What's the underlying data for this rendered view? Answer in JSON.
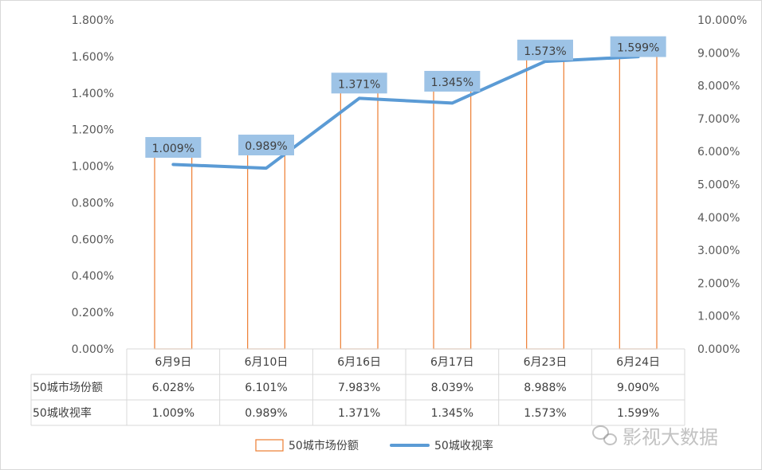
{
  "chart_data": {
    "type": "bar",
    "categories": [
      "6月9日",
      "6月10日",
      "6月16日",
      "6月17日",
      "6月23日",
      "6月24日"
    ],
    "series": [
      {
        "name": "50城市场份额",
        "kind": "bar",
        "axis": "secondary",
        "values": [
          6.028,
          6.101,
          7.983,
          8.039,
          8.988,
          9.09
        ],
        "value_labels": [
          "6.028%",
          "6.101%",
          "7.983%",
          "8.039%",
          "8.988%",
          "9.090%"
        ],
        "color": "#ed7d31"
      },
      {
        "name": "50城收视率",
        "kind": "line",
        "axis": "primary",
        "values": [
          1.009,
          0.989,
          1.371,
          1.345,
          1.573,
          1.599
        ],
        "value_labels": [
          "1.009%",
          "0.989%",
          "1.371%",
          "1.345%",
          "1.573%",
          "1.599%"
        ],
        "color": "#5b9bd5",
        "label_bg": "#9dc3e6"
      }
    ],
    "left_axis": {
      "ylim": [
        0,
        1.8
      ],
      "ticks": [
        "0.000%",
        "0.200%",
        "0.400%",
        "0.600%",
        "0.800%",
        "1.000%",
        "1.200%",
        "1.400%",
        "1.600%",
        "1.800%"
      ],
      "tick_values": [
        0,
        0.2,
        0.4,
        0.6,
        0.8,
        1.0,
        1.2,
        1.4,
        1.6,
        1.8
      ]
    },
    "right_axis": {
      "ylim": [
        0,
        10
      ],
      "ticks": [
        "0.000%",
        "1.000%",
        "2.000%",
        "3.000%",
        "4.000%",
        "5.000%",
        "6.000%",
        "7.000%",
        "8.000%",
        "9.000%",
        "10.000%"
      ],
      "tick_values": [
        0,
        1,
        2,
        3,
        4,
        5,
        6,
        7,
        8,
        9,
        10
      ]
    },
    "data_table": {
      "rows": [
        {
          "label": "50城市场份额",
          "values": [
            "6.028%",
            "6.101%",
            "7.983%",
            "8.039%",
            "8.988%",
            "9.090%"
          ]
        },
        {
          "label": "50城收视率",
          "values": [
            "1.009%",
            "0.989%",
            "1.371%",
            "1.345%",
            "1.573%",
            "1.599%"
          ]
        }
      ]
    },
    "legend": {
      "placement": "bottom",
      "items": [
        "50城市场份额",
        "50城收视率"
      ]
    },
    "grid": false
  },
  "watermark": {
    "text": "影视大数据",
    "icon": "wechat-icon"
  }
}
